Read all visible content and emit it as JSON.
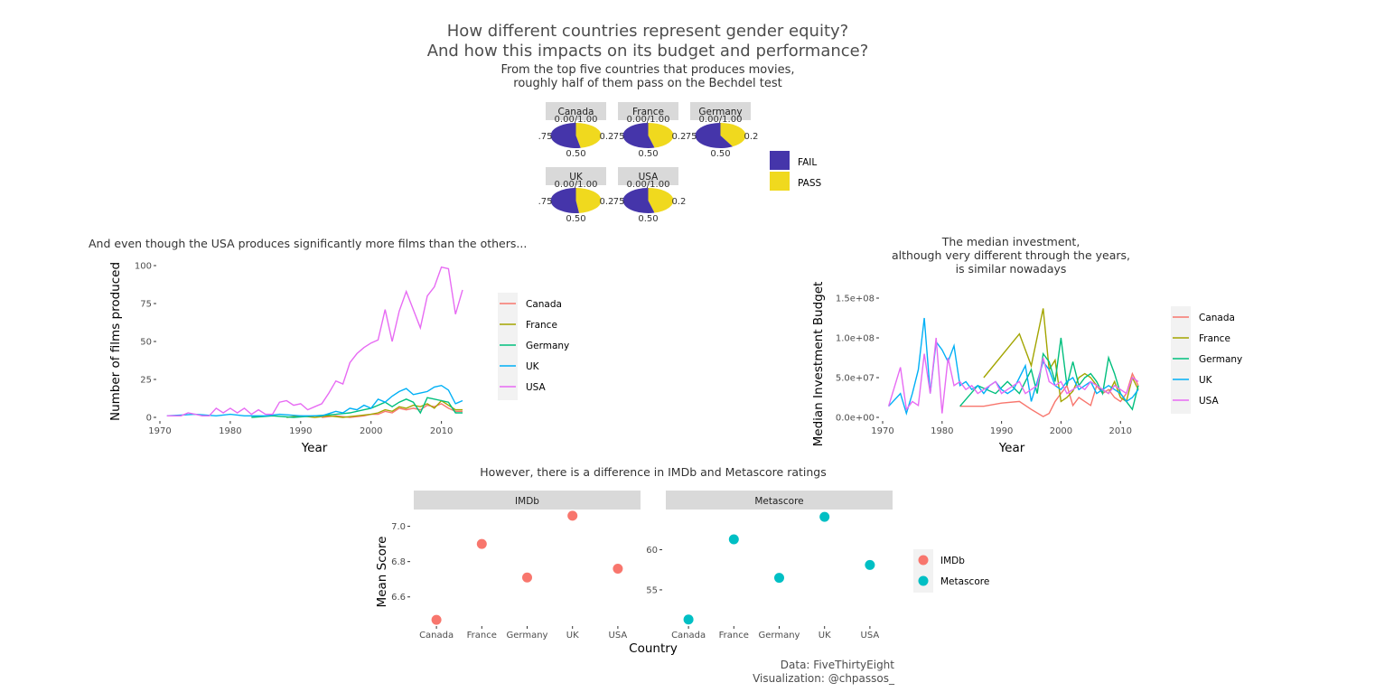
{
  "header": {
    "title": "How different countries represent gender equity?\nAnd how this impacts on its budget and performance?",
    "subtitle": "From the top five countries that produces movies,\nroughly half of them pass on the Bechdel test"
  },
  "colors": {
    "fail": "#4535AA",
    "pass": "#F0D91E",
    "Canada": "#F8766D",
    "France": "#A3A500",
    "Germany": "#00BF7D",
    "UK": "#00B0F6",
    "USA": "#E76BF3",
    "IMDb": "#F8766D",
    "Metascore": "#00BFC4",
    "strip": "#D9D9D9",
    "legend_bg": "#F2F2F2"
  },
  "chart_data": [
    {
      "type": "pie",
      "facets": [
        "Canada",
        "France",
        "Germany",
        "UK",
        "USA"
      ],
      "categories": [
        "FAIL",
        "PASS"
      ],
      "pass_share": {
        "Canada": 0.47,
        "France": 0.46,
        "Germany": 0.42,
        "UK": 0.48,
        "USA": 0.46
      },
      "tick_labels": [
        "0.00/1.00",
        ".75",
        "0.2",
        "0.50"
      ],
      "legend": [
        "FAIL",
        "PASS"
      ]
    },
    {
      "type": "line",
      "title": "And even though the USA produces significantly more films than the others...",
      "xlabel": "Year",
      "ylabel": "Number of films produced",
      "xlim": [
        1970,
        2013
      ],
      "ylim": [
        0,
        100
      ],
      "xticks": [
        1970,
        1980,
        1990,
        2000,
        2010
      ],
      "yticks": [
        0,
        25,
        50,
        75,
        100
      ],
      "series": [
        {
          "name": "Canada",
          "x": [
            1993,
            1995,
            1997,
            1999,
            2000,
            2001,
            2002,
            2003,
            2004,
            2005,
            2006,
            2007,
            2008,
            2009,
            2010,
            2011,
            2012,
            2013
          ],
          "values": [
            0,
            1,
            0,
            1,
            2,
            2,
            4,
            3,
            6,
            5,
            6,
            5,
            8,
            7,
            9,
            6,
            4,
            4
          ]
        },
        {
          "name": "France",
          "x": [
            1988,
            1990,
            1992,
            1994,
            1996,
            1998,
            2000,
            2001,
            2002,
            2003,
            2004,
            2005,
            2006,
            2007,
            2008,
            2009,
            2010,
            2011,
            2012,
            2013
          ],
          "values": [
            0,
            1,
            0,
            1,
            0,
            1,
            2,
            3,
            5,
            4,
            7,
            6,
            8,
            7,
            9,
            6,
            11,
            8,
            5,
            5
          ]
        },
        {
          "name": "Germany",
          "x": [
            1983,
            1986,
            1989,
            1992,
            1995,
            1997,
            1998,
            1999,
            2000,
            2001,
            2002,
            2003,
            2004,
            2005,
            2006,
            2007,
            2008,
            2009,
            2010,
            2011,
            2012,
            2013
          ],
          "values": [
            0,
            1,
            0,
            1,
            2,
            3,
            4,
            5,
            6,
            8,
            10,
            7,
            10,
            12,
            10,
            3,
            13,
            12,
            11,
            10,
            3,
            3
          ]
        },
        {
          "name": "UK",
          "x": [
            1971,
            1975,
            1978,
            1980,
            1982,
            1985,
            1987,
            1990,
            1993,
            1995,
            1996,
            1997,
            1998,
            1999,
            2000,
            2001,
            2002,
            2003,
            2004,
            2005,
            2006,
            2007,
            2008,
            2009,
            2010,
            2011,
            2012,
            2013
          ],
          "values": [
            1,
            2,
            1,
            2,
            1,
            1,
            2,
            1,
            1,
            4,
            3,
            6,
            5,
            8,
            6,
            12,
            10,
            14,
            17,
            19,
            15,
            16,
            17,
            20,
            21,
            18,
            9,
            11
          ]
        },
        {
          "name": "USA",
          "x": [
            1971,
            1973,
            1974,
            1975,
            1976,
            1977,
            1978,
            1979,
            1980,
            1981,
            1982,
            1983,
            1984,
            1985,
            1986,
            1987,
            1988,
            1989,
            1990,
            1991,
            1992,
            1993,
            1994,
            1995,
            1996,
            1997,
            1998,
            1999,
            2000,
            2001,
            2002,
            2003,
            2004,
            2005,
            2006,
            2007,
            2008,
            2009,
            2010,
            2011,
            2012,
            2013
          ],
          "values": [
            1,
            1,
            3,
            2,
            1,
            1,
            6,
            3,
            6,
            3,
            6,
            2,
            5,
            2,
            2,
            10,
            11,
            8,
            9,
            5,
            7,
            9,
            16,
            24,
            22,
            36,
            42,
            46,
            49,
            51,
            71,
            50,
            70,
            83,
            71,
            59,
            80,
            86,
            99,
            98,
            68,
            84
          ]
        }
      ],
      "legend": [
        "Canada",
        "France",
        "Germany",
        "UK",
        "USA"
      ]
    },
    {
      "type": "line",
      "title": "The median investment,\nalthough very different through the years,\nis similar nowadays",
      "xlabel": "Year",
      "ylabel": "Median Investment Budget",
      "xlim": [
        1970,
        2013
      ],
      "ylim": [
        0,
        150000000
      ],
      "xticks": [
        1970,
        1980,
        1990,
        2000,
        2010
      ],
      "yticks": [
        0,
        50000000,
        100000000,
        150000000
      ],
      "ytick_labels": [
        "0.0e+00",
        "5.0e+07",
        "1.0e+08",
        "1.5e+08"
      ],
      "series": [
        {
          "name": "Canada",
          "x": [
            1983,
            1987,
            1990,
            1993,
            1995,
            1997,
            1998,
            1999,
            2000,
            2001,
            2002,
            2003,
            2004,
            2005,
            2006,
            2007,
            2008,
            2009,
            2010,
            2011,
            2012,
            2013
          ],
          "values": [
            14000000,
            14000000,
            18000000,
            20000000,
            10000000,
            1000000,
            5000000,
            20000000,
            30000000,
            40000000,
            15000000,
            25000000,
            20000000,
            15000000,
            40000000,
            30000000,
            35000000,
            25000000,
            20000000,
            30000000,
            55000000,
            40000000
          ]
        },
        {
          "name": "France",
          "x": [
            1987,
            1993,
            1995,
            1997,
            1998,
            1999,
            2000,
            2001,
            2002,
            2003,
            2004,
            2005,
            2006,
            2007,
            2008,
            2009,
            2010,
            2011,
            2012,
            2013
          ],
          "values": [
            50000000,
            105000000,
            65000000,
            137000000,
            60000000,
            72000000,
            20000000,
            25000000,
            33000000,
            50000000,
            55000000,
            50000000,
            40000000,
            35000000,
            30000000,
            45000000,
            25000000,
            20000000,
            50000000,
            35000000
          ]
        },
        {
          "name": "Germany",
          "x": [
            1983,
            1986,
            1989,
            1991,
            1993,
            1995,
            1996,
            1997,
            1998,
            1999,
            2000,
            2001,
            2002,
            2003,
            2004,
            2005,
            2006,
            2007,
            2008,
            2009,
            2010,
            2011,
            2012,
            2013
          ],
          "values": [
            14000000,
            40000000,
            30000000,
            45000000,
            30000000,
            60000000,
            30000000,
            80000000,
            70000000,
            45000000,
            100000000,
            40000000,
            70000000,
            40000000,
            50000000,
            55000000,
            45000000,
            30000000,
            75000000,
            55000000,
            30000000,
            20000000,
            10000000,
            40000000
          ]
        },
        {
          "name": "UK",
          "x": [
            1971,
            1973,
            1974,
            1975,
            1976,
            1977,
            1978,
            1979,
            1980,
            1981,
            1982,
            1983,
            1984,
            1985,
            1986,
            1987,
            1988,
            1989,
            1990,
            1991,
            1992,
            1993,
            1994,
            1995,
            1996,
            1997,
            1998,
            1999,
            2000,
            2001,
            2002,
            2003,
            2004,
            2005,
            2006,
            2007,
            2008,
            2009,
            2010,
            2011,
            2012,
            2013
          ],
          "values": [
            14000000,
            30000000,
            5000000,
            30000000,
            60000000,
            125000000,
            30000000,
            95000000,
            85000000,
            70000000,
            90000000,
            40000000,
            45000000,
            35000000,
            40000000,
            30000000,
            40000000,
            45000000,
            35000000,
            30000000,
            35000000,
            50000000,
            65000000,
            20000000,
            45000000,
            70000000,
            60000000,
            40000000,
            35000000,
            45000000,
            50000000,
            35000000,
            40000000,
            45000000,
            30000000,
            35000000,
            40000000,
            35000000,
            30000000,
            20000000,
            25000000,
            35000000
          ]
        },
        {
          "name": "USA",
          "x": [
            1971,
            1973,
            1974,
            1975,
            1976,
            1977,
            1978,
            1979,
            1980,
            1981,
            1982,
            1983,
            1984,
            1985,
            1986,
            1987,
            1988,
            1989,
            1990,
            1991,
            1992,
            1993,
            1994,
            1995,
            1996,
            1997,
            1998,
            1999,
            2000,
            2001,
            2002,
            2003,
            2004,
            2005,
            2006,
            2007,
            2008,
            2009,
            2010,
            2011,
            2012,
            2013
          ],
          "values": [
            14000000,
            63000000,
            10000000,
            20000000,
            15000000,
            80000000,
            30000000,
            100000000,
            5000000,
            75000000,
            40000000,
            45000000,
            35000000,
            40000000,
            30000000,
            35000000,
            40000000,
            45000000,
            30000000,
            35000000,
            40000000,
            45000000,
            30000000,
            35000000,
            40000000,
            75000000,
            45000000,
            40000000,
            45000000,
            30000000,
            35000000,
            40000000,
            35000000,
            45000000,
            40000000,
            35000000,
            30000000,
            40000000,
            35000000,
            30000000,
            50000000,
            45000000
          ]
        }
      ],
      "legend": [
        "Canada",
        "France",
        "Germany",
        "UK",
        "USA"
      ]
    },
    {
      "type": "scatter",
      "title": "However, there is a  difference in IMDb and Metascore ratings",
      "xlabel": "Country",
      "ylabel": "Mean Score",
      "categories": [
        "Canada",
        "France",
        "Germany",
        "UK",
        "USA"
      ],
      "facets": [
        {
          "name": "IMDb",
          "values": [
            6.47,
            6.9,
            6.71,
            7.06,
            6.76
          ],
          "ylim": [
            6.44,
            7.09
          ],
          "yticks": [
            6.6,
            6.8,
            7.0
          ],
          "ytick_labels": [
            "6.6",
            "6.8",
            "7.0"
          ]
        },
        {
          "name": "Metascore",
          "values": [
            51.3,
            61.3,
            56.5,
            64.1,
            58.1
          ],
          "ylim": [
            50.6,
            64.9
          ],
          "yticks": [
            55,
            60
          ],
          "ytick_labels": [
            "55",
            "60"
          ]
        }
      ],
      "legend": [
        "IMDb",
        "Metascore"
      ]
    }
  ],
  "caption": {
    "source": "Data: FiveThirtyEight",
    "author": "Visualization: @chpassos_"
  }
}
